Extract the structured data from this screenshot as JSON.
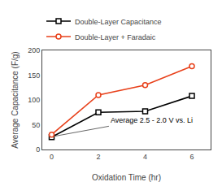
{
  "chart_data": {
    "type": "line",
    "x": [
      0,
      2,
      4,
      6
    ],
    "series": [
      {
        "name": "Double-Layer Capacitance",
        "color": "#000000",
        "marker": "square",
        "values": [
          25,
          75,
          77,
          108
        ]
      },
      {
        "name": "Double-Layer + Faradaic",
        "color": "#e8401a",
        "marker": "circle",
        "values": [
          30,
          110,
          130,
          168
        ]
      }
    ],
    "xlabel": "Oxidation Time (hr)",
    "ylabel": "Average Capacitance (F/g)",
    "xlim": [
      -0.4,
      6.8
    ],
    "ylim": [
      0,
      200
    ],
    "xticks": [
      0,
      2,
      4,
      6
    ],
    "yticks": [
      0,
      50,
      100,
      150,
      200
    ],
    "grid": false,
    "legend": "upper left",
    "annotations": [
      {
        "text": "Average 2.5 - 2.0 V vs. Li",
        "x": 0.15,
        "y": 27,
        "text_x": 2.45,
        "text_y": 47
      }
    ]
  }
}
